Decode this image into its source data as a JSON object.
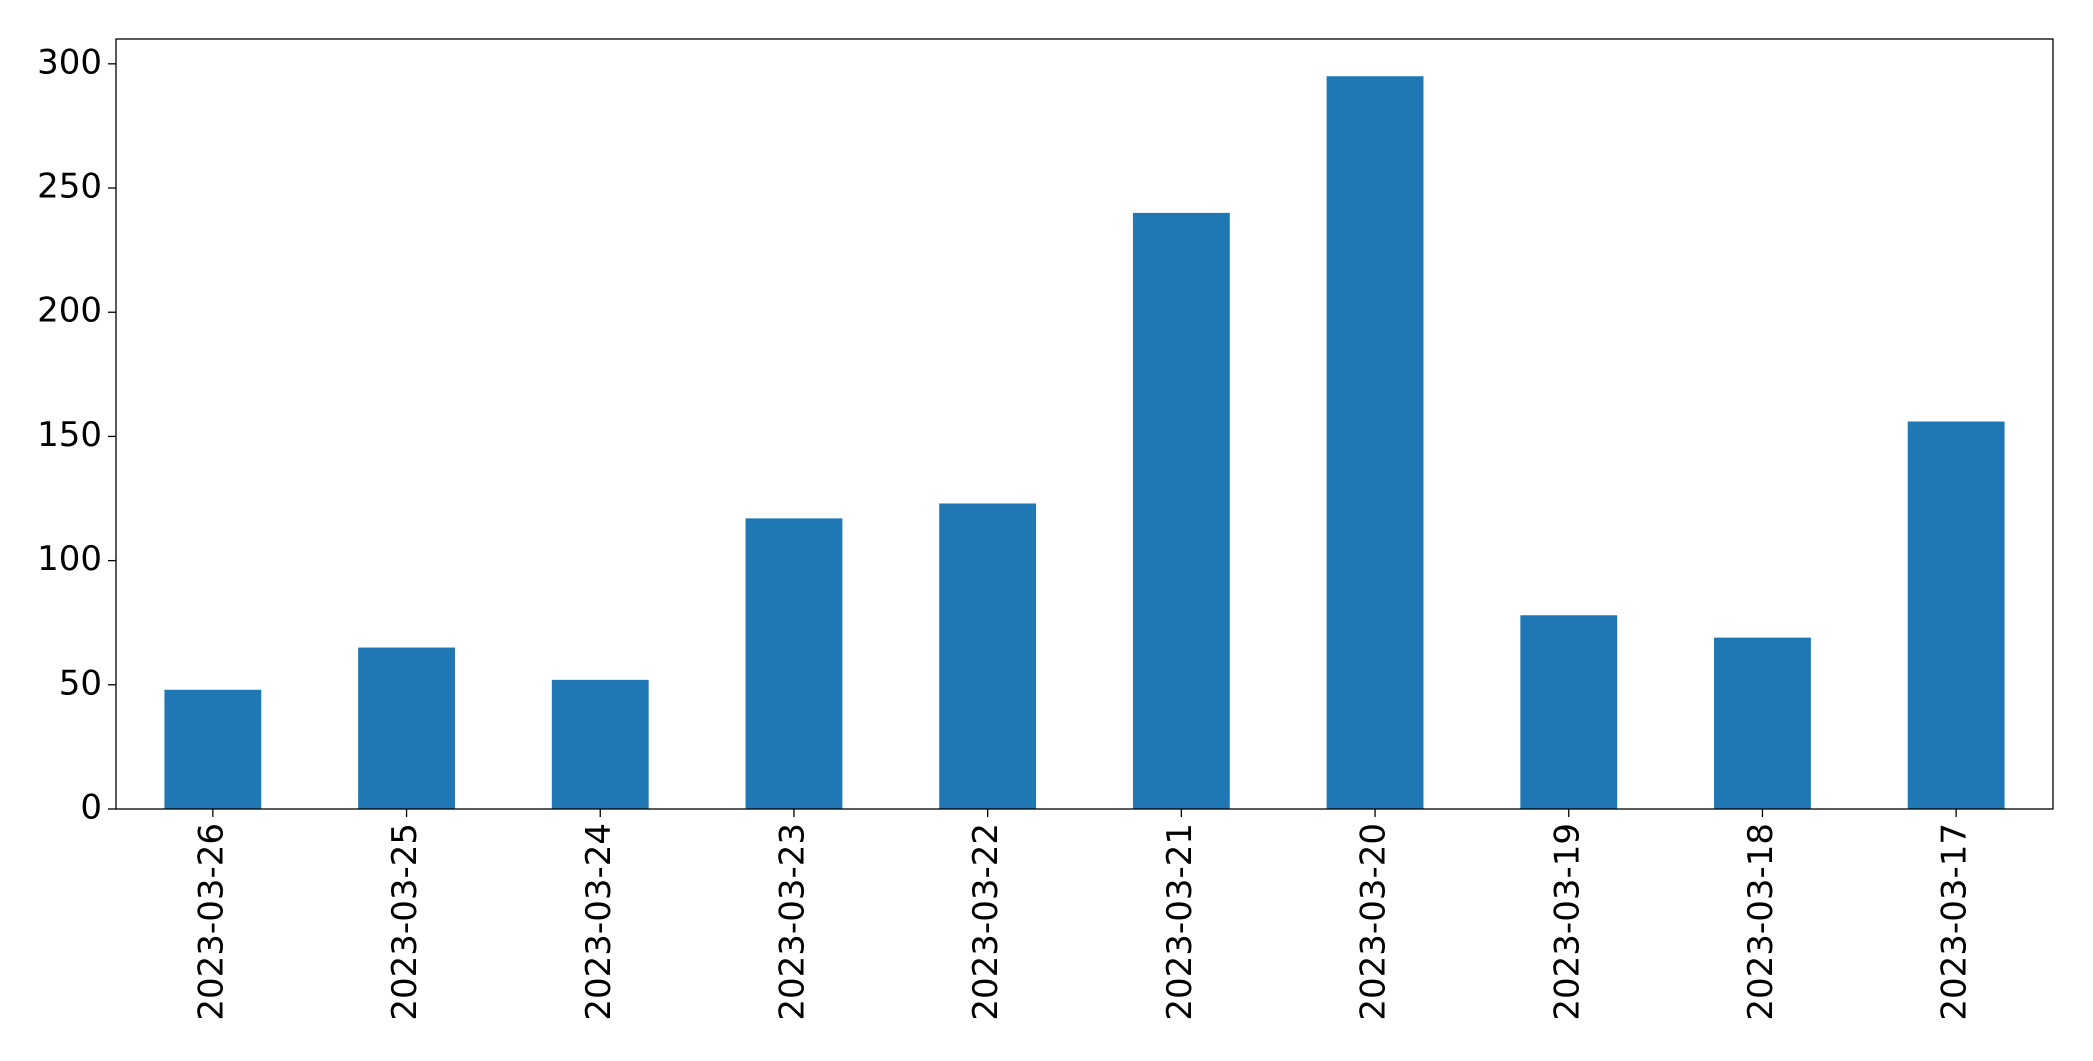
{
  "chart_data": {
    "type": "bar",
    "categories": [
      "2023-03-26",
      "2023-03-25",
      "2023-03-24",
      "2023-03-23",
      "2023-03-22",
      "2023-03-21",
      "2023-03-20",
      "2023-03-19",
      "2023-03-18",
      "2023-03-17"
    ],
    "values": [
      48,
      65,
      52,
      117,
      123,
      240,
      295,
      78,
      69,
      156
    ],
    "color": "#1f77b4",
    "ylim": [
      0,
      310
    ],
    "yticks": [
      0,
      50,
      100,
      150,
      200,
      250,
      300
    ],
    "grid": false
  }
}
